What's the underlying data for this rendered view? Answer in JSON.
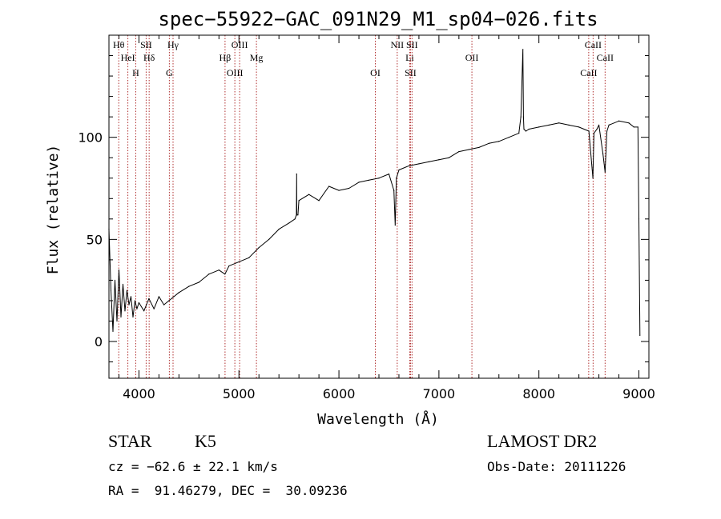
{
  "chart_data": {
    "type": "line",
    "title": "spec−55922−GAC_091N29_M1_sp04−026.fits",
    "xlabel": "Wavelength (Å)",
    "ylabel": "Flux (relative)",
    "xlim": [
      3700,
      9100
    ],
    "ylim": [
      -18,
      150
    ],
    "xticks": [
      4000,
      5000,
      6000,
      7000,
      8000,
      9000
    ],
    "yticks": [
      0,
      50,
      100
    ],
    "grid": false,
    "series": [
      {
        "x": [
          3700,
          3720,
          3740,
          3760,
          3780,
          3800,
          3820,
          3840,
          3860,
          3880,
          3900,
          3920,
          3940,
          3960,
          3980,
          4000,
          4050,
          4100,
          4150,
          4200,
          4250,
          4300,
          4350,
          4400,
          4500,
          4600,
          4700,
          4800,
          4860,
          4900,
          5000,
          5100,
          5200,
          5300,
          5400,
          5500,
          5560,
          5575,
          5577,
          5579,
          5590,
          5600,
          5700,
          5800,
          5900,
          6000,
          6100,
          6200,
          6300,
          6400,
          6500,
          6550,
          6563,
          6575,
          6600,
          6700,
          6800,
          6900,
          7000,
          7100,
          7200,
          7300,
          7400,
          7500,
          7600,
          7700,
          7800,
          7820,
          7840,
          7845,
          7850,
          7870,
          7900,
          8000,
          8100,
          8200,
          8300,
          8400,
          8500,
          8540,
          8550,
          8580,
          8600,
          8640,
          8662,
          8680,
          8700,
          8800,
          8900,
          8950,
          8990,
          9000,
          9010
        ],
        "y": [
          55,
          25,
          5,
          30,
          10,
          35,
          12,
          28,
          15,
          25,
          18,
          22,
          12,
          20,
          16,
          19,
          15,
          21,
          16,
          22,
          18,
          20,
          22,
          24,
          27,
          29,
          33,
          35,
          33,
          37,
          39,
          41,
          46,
          50,
          55,
          58,
          60,
          62,
          82,
          62,
          62,
          69,
          72,
          69,
          76,
          74,
          75,
          78,
          79,
          80,
          82,
          74,
          57,
          80,
          84,
          86,
          87,
          88,
          89,
          90,
          93,
          94,
          95,
          97,
          98,
          100,
          102,
          110,
          143,
          110,
          104,
          103,
          104,
          105,
          106,
          107,
          106,
          105,
          103,
          80,
          102,
          104,
          106,
          92,
          83,
          103,
          106,
          108,
          107,
          105,
          105,
          60,
          3
        ]
      }
    ],
    "lines": [
      {
        "label": "Hθ",
        "wavelength": 3798
      },
      {
        "label": "HeI",
        "wavelength": 3889
      },
      {
        "label": "H",
        "wavelength": 3968
      },
      {
        "label": "SII",
        "wavelength": 4072
      },
      {
        "label": "Hδ",
        "wavelength": 4102
      },
      {
        "label": "G",
        "wavelength": 4304
      },
      {
        "label": "Hγ",
        "wavelength": 4341
      },
      {
        "label": "Hβ",
        "wavelength": 4861
      },
      {
        "label": "OIII",
        "wavelength": 4959
      },
      {
        "label": "OIII",
        "wavelength": 5007
      },
      {
        "label": "Mg",
        "wavelength": 5175
      },
      {
        "label": "OI",
        "wavelength": 6364
      },
      {
        "label": "NII",
        "wavelength": 6583
      },
      {
        "label": "Li",
        "wavelength": 6708
      },
      {
        "label": "SII",
        "wavelength": 6716
      },
      {
        "label": "SII",
        "wavelength": 6731
      },
      {
        "label": "OII",
        "wavelength": 7330
      },
      {
        "label": "CaII",
        "wavelength": 8498
      },
      {
        "label": "CaII",
        "wavelength": 8542
      },
      {
        "label": "CaII",
        "wavelength": 8662
      }
    ],
    "colors": {
      "spectrum": "#000000",
      "lines": "#b03030",
      "axes": "#000000"
    }
  },
  "info": {
    "class": "STAR",
    "subclass": "K5",
    "survey": "LAMOST DR2",
    "cz": "cz = −62.6 ± 22.1 km/s",
    "obs_date": "Obs-Date: 20111226",
    "coords": "RA =  91.46279, DEC =  30.09236"
  }
}
